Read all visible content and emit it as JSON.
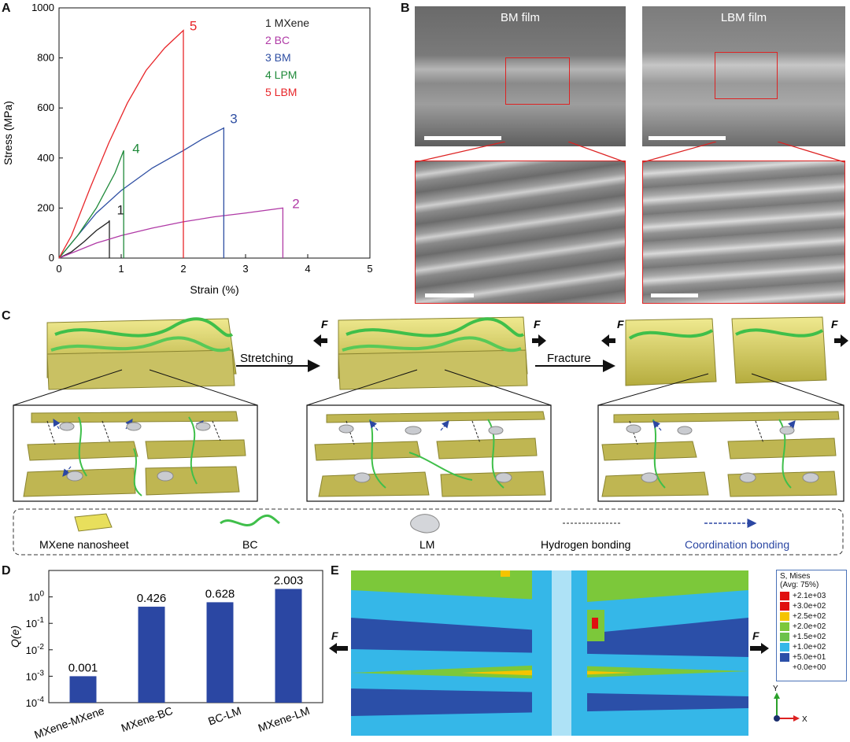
{
  "panels": {
    "a": "A",
    "b": "B",
    "c": "C",
    "d": "D",
    "e": "E"
  },
  "colors": {
    "mxene": "#222222",
    "bc": "#b03aa6",
    "bm": "#2f4fa3",
    "lpm": "#1f8a3a",
    "lbm": "#e8262a",
    "bar": "#2b47a3"
  },
  "chart_data": [
    {
      "type": "line",
      "xlabel": "Strain (%)",
      "ylabel": "Stress (MPa)",
      "xlim": [
        0,
        5
      ],
      "ylim": [
        0,
        1000
      ],
      "xticks": [
        "0",
        "1",
        "2",
        "3",
        "4",
        "5"
      ],
      "yticks": [
        "0",
        "200",
        "400",
        "600",
        "800",
        "1000"
      ],
      "legend_position": "top-right",
      "series": [
        {
          "name": "MXene",
          "num": "1",
          "color": "#222222",
          "x": [
            0,
            0.2,
            0.4,
            0.6,
            0.8,
            0.81,
            0.81
          ],
          "y": [
            0,
            25,
            65,
            110,
            145,
            150,
            0
          ]
        },
        {
          "name": "BC",
          "num": "2",
          "color": "#b03aa6",
          "x": [
            0,
            0.3,
            0.6,
            1.0,
            1.5,
            2.0,
            2.5,
            3.0,
            3.6,
            3.6
          ],
          "y": [
            0,
            30,
            60,
            90,
            120,
            145,
            165,
            180,
            200,
            0
          ]
        },
        {
          "name": "BM",
          "num": "3",
          "color": "#2f4fa3",
          "x": [
            0,
            0.3,
            0.6,
            1.0,
            1.5,
            2.0,
            2.3,
            2.65,
            2.65
          ],
          "y": [
            0,
            90,
            180,
            270,
            360,
            430,
            475,
            520,
            0
          ]
        },
        {
          "name": "LPM",
          "num": "4",
          "color": "#1f8a3a",
          "x": [
            0,
            0.3,
            0.6,
            0.9,
            1.04,
            1.04
          ],
          "y": [
            0,
            90,
            200,
            340,
            430,
            0
          ]
        },
        {
          "name": "LBM",
          "num": "5",
          "color": "#e8262a",
          "x": [
            0,
            0.2,
            0.5,
            0.8,
            1.1,
            1.4,
            1.7,
            2.0,
            2.0
          ],
          "y": [
            0,
            90,
            280,
            460,
            620,
            750,
            840,
            910,
            0
          ]
        }
      ]
    },
    {
      "type": "bar",
      "ylabel": "Q(e)",
      "yscale": "log",
      "ylim": [
        0.0001,
        10
      ],
      "yticks": [
        "10^-4",
        "10^-3",
        "10^-2",
        "10^-1",
        "10^0"
      ],
      "categories": [
        "MXene-MXene",
        "MXene-BC",
        "BC-LM",
        "MXene-LM"
      ],
      "values": [
        0.001,
        0.426,
        0.628,
        2.003
      ],
      "labels": [
        "0.001",
        "0.426",
        "0.628",
        "2.003"
      ]
    }
  ],
  "sem": {
    "bm": "BM film",
    "lbm": "LBM film"
  },
  "schematic": {
    "stretching": "Stretching",
    "fracture": "Fracture",
    "force": "F"
  },
  "legend_c": {
    "mxene": "MXene nanosheet",
    "bc": "BC",
    "lm": "LM",
    "hb": "Hydrogen bonding",
    "cb": "Coordination bonding"
  },
  "fea": {
    "title": "S, Mises",
    "subtitle": "(Avg: 75%)",
    "entries": [
      {
        "label": "+2.1e+03",
        "color": "#e01010"
      },
      {
        "label": "+3.0e+02",
        "color": "#e01010"
      },
      {
        "label": "+2.5e+02",
        "color": "#f5c400"
      },
      {
        "label": "+2.0e+02",
        "color": "#7cc83a"
      },
      {
        "label": "+1.5e+02",
        "color": "#6cc24a"
      },
      {
        "label": "+1.0e+02",
        "color": "#35b7e8"
      },
      {
        "label": "+5.0e+01",
        "color": "#2b4fa8"
      },
      {
        "label": "+0.0e+00",
        "color": ""
      }
    ],
    "axis_y": "Y",
    "axis_x": "X",
    "force": "F"
  }
}
